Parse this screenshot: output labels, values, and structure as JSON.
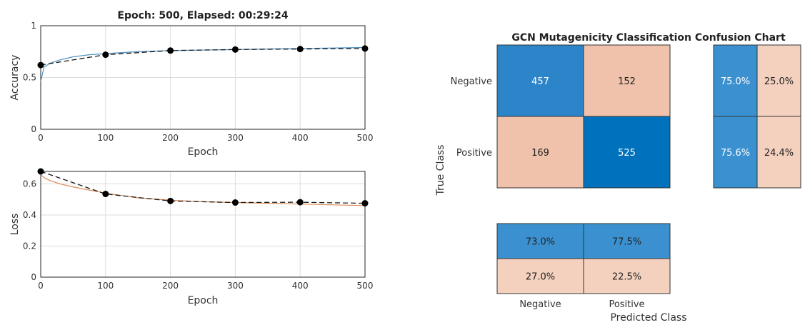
{
  "chart_data": [
    {
      "type": "line",
      "title": "Epoch: 500, Elapsed: 00:29:24",
      "xlabel": "Epoch",
      "ylabel": "Accuracy",
      "xlim": [
        0,
        500
      ],
      "ylim": [
        0,
        1
      ],
      "xticks": [
        "0",
        "100",
        "200",
        "300",
        "400",
        "500"
      ],
      "yticks": [
        "0",
        "0.5",
        "1"
      ],
      "grid": true,
      "series": [
        {
          "role": "training",
          "color": "#4e92c4",
          "x": [
            0,
            5,
            15,
            30,
            50,
            75,
            100,
            150,
            200,
            250,
            300,
            350,
            400,
            450,
            500
          ],
          "y": [
            0.46,
            0.6,
            0.64,
            0.67,
            0.7,
            0.72,
            0.73,
            0.75,
            0.76,
            0.765,
            0.77,
            0.775,
            0.78,
            0.785,
            0.79
          ]
        },
        {
          "role": "validation",
          "color": "#1a1a1a",
          "style": "dashed",
          "marker": "circle",
          "x": [
            0,
            100,
            200,
            300,
            400,
            500
          ],
          "y": [
            0.62,
            0.72,
            0.76,
            0.77,
            0.775,
            0.78
          ]
        }
      ]
    },
    {
      "type": "line",
      "xlabel": "Epoch",
      "ylabel": "Loss",
      "xlim": [
        0,
        500
      ],
      "ylim": [
        0,
        0.68
      ],
      "xticks": [
        "0",
        "100",
        "200",
        "300",
        "400",
        "500"
      ],
      "yticks": [
        "0",
        "0.2",
        "0.4",
        "0.6"
      ],
      "grid": true,
      "series": [
        {
          "role": "training",
          "color": "#d98b55",
          "x": [
            0,
            5,
            15,
            30,
            50,
            75,
            100,
            150,
            200,
            250,
            300,
            350,
            400,
            450,
            500
          ],
          "y": [
            0.66,
            0.64,
            0.62,
            0.6,
            0.58,
            0.56,
            0.54,
            0.51,
            0.495,
            0.485,
            0.48,
            0.475,
            0.47,
            0.465,
            0.46
          ]
        },
        {
          "role": "validation",
          "color": "#1a1a1a",
          "style": "dashed",
          "marker": "circle",
          "x": [
            0,
            100,
            200,
            300,
            400,
            500
          ],
          "y": [
            0.68,
            0.535,
            0.49,
            0.48,
            0.482,
            0.475
          ]
        }
      ]
    },
    {
      "type": "heatmap",
      "title": "GCN Mutagenicity Classification Confusion Chart",
      "xlabel": "Predicted Class",
      "ylabel": "True Class",
      "classes": [
        "Negative",
        "Positive"
      ],
      "matrix": [
        [
          457,
          152
        ],
        [
          169,
          525
        ]
      ],
      "row_summary": [
        [
          "75.0%",
          "25.0%"
        ],
        [
          "75.6%",
          "24.4%"
        ]
      ],
      "column_summary": [
        [
          "73.0%",
          "77.5%"
        ],
        [
          "27.0%",
          "22.5%"
        ]
      ],
      "colors": {
        "diag_strong": "#0072bd",
        "diag_mid": "#2d85c9",
        "summary_correct": "#3b91d0",
        "off_diag": "#f0c2ab",
        "summary_incorrect": "#f4d0be"
      }
    }
  ]
}
